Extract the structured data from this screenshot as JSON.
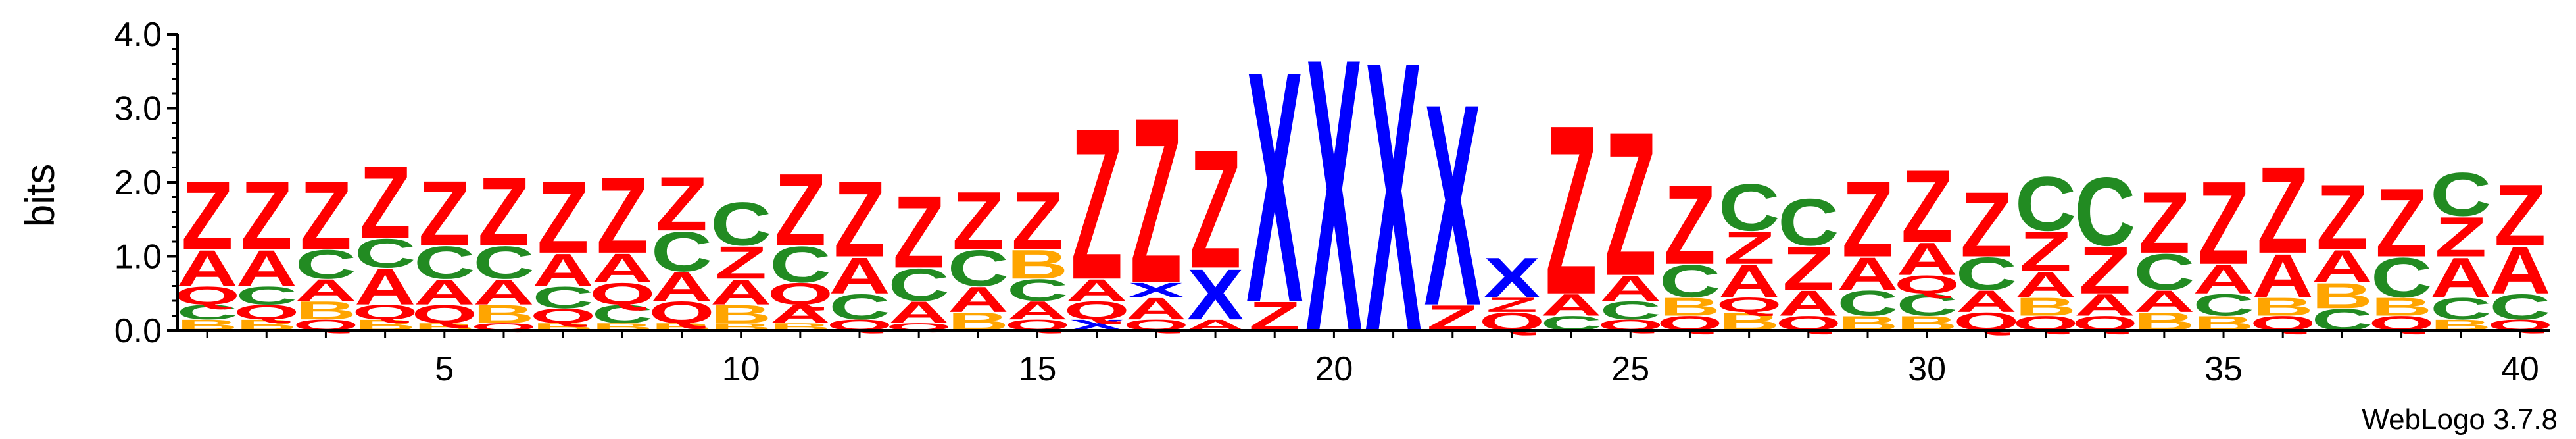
{
  "chart_data": {
    "type": "sequence-logo",
    "ylabel": "bits",
    "ylim": [
      0,
      4.0
    ],
    "y_ticks": [
      "0.0",
      "1.0",
      "2.0",
      "3.0",
      "4.0"
    ],
    "y_tick_values": [
      0,
      1,
      2,
      3,
      4
    ],
    "x_tick_positions": [
      5,
      10,
      15,
      20,
      25,
      30,
      35,
      40
    ],
    "x_tick_labels": [
      "5",
      "10",
      "15",
      "20",
      "25",
      "30",
      "35",
      "40"
    ],
    "colors": {
      "Z": "#ff0000",
      "A": "#ff0000",
      "C": "#228b22",
      "Q": "#ff0000",
      "B": "#ffa500",
      "X": "#0000ff"
    },
    "positions": [
      {
        "pos": 1,
        "stack": [
          [
            "B",
            0.15
          ],
          [
            "C",
            0.2
          ],
          [
            "Q",
            0.25
          ],
          [
            "A",
            0.5
          ],
          [
            "Z",
            0.95
          ]
        ]
      },
      {
        "pos": 2,
        "stack": [
          [
            "B",
            0.15
          ],
          [
            "Q",
            0.2
          ],
          [
            "C",
            0.25
          ],
          [
            "A",
            0.5
          ],
          [
            "Z",
            0.95
          ]
        ]
      },
      {
        "pos": 3,
        "stack": [
          [
            "Q",
            0.15
          ],
          [
            "B",
            0.25
          ],
          [
            "A",
            0.3
          ],
          [
            "C",
            0.4
          ],
          [
            "Z",
            0.95
          ]
        ]
      },
      {
        "pos": 4,
        "stack": [
          [
            "B",
            0.15
          ],
          [
            "Q",
            0.2
          ],
          [
            "A",
            0.5
          ],
          [
            "C",
            0.4
          ],
          [
            "Z",
            1.0
          ]
        ]
      },
      {
        "pos": 5,
        "stack": [
          [
            "B",
            0.1
          ],
          [
            "Q",
            0.25
          ],
          [
            "A",
            0.35
          ],
          [
            "C",
            0.45
          ],
          [
            "Z",
            0.9
          ]
        ]
      },
      {
        "pos": 6,
        "stack": [
          [
            "Q",
            0.1
          ],
          [
            "B",
            0.25
          ],
          [
            "A",
            0.35
          ],
          [
            "C",
            0.45
          ],
          [
            "Z",
            0.95
          ]
        ]
      },
      {
        "pos": 7,
        "stack": [
          [
            "B",
            0.1
          ],
          [
            "Q",
            0.2
          ],
          [
            "C",
            0.3
          ],
          [
            "A",
            0.45
          ],
          [
            "Z",
            1.0
          ]
        ]
      },
      {
        "pos": 8,
        "stack": [
          [
            "B",
            0.1
          ],
          [
            "C",
            0.25
          ],
          [
            "Q",
            0.3
          ],
          [
            "A",
            0.4
          ],
          [
            "Z",
            1.05
          ]
        ]
      },
      {
        "pos": 9,
        "stack": [
          [
            "B",
            0.1
          ],
          [
            "Q",
            0.3
          ],
          [
            "A",
            0.4
          ],
          [
            "C",
            0.55
          ],
          [
            "Z",
            0.75
          ]
        ]
      },
      {
        "pos": 10,
        "stack": [
          [
            "B",
            0.1
          ],
          [
            "B",
            0.25
          ],
          [
            "A",
            0.35
          ],
          [
            "Z",
            0.45
          ],
          [
            "C",
            0.6
          ]
        ]
      },
      {
        "pos": 11,
        "stack": [
          [
            "B",
            0.1
          ],
          [
            "A",
            0.25
          ],
          [
            "Q",
            0.3
          ],
          [
            "C",
            0.5
          ],
          [
            "Z",
            1.0
          ]
        ]
      },
      {
        "pos": 12,
        "stack": [
          [
            "Q",
            0.15
          ],
          [
            "C",
            0.35
          ],
          [
            "A",
            0.5
          ],
          [
            "Z",
            1.05
          ]
        ]
      },
      {
        "pos": 13,
        "stack": [
          [
            "Q",
            0.1
          ],
          [
            "A",
            0.3
          ],
          [
            "C",
            0.45
          ],
          [
            "Z",
            1.0
          ]
        ]
      },
      {
        "pos": 14,
        "stack": [
          [
            "B",
            0.25
          ],
          [
            "A",
            0.35
          ],
          [
            "C",
            0.5
          ],
          [
            "Z",
            0.8
          ]
        ]
      },
      {
        "pos": 15,
        "stack": [
          [
            "Q",
            0.15
          ],
          [
            "A",
            0.25
          ],
          [
            "C",
            0.3
          ],
          [
            "B",
            0.4
          ],
          [
            "Z",
            0.8
          ]
        ]
      },
      {
        "pos": 16,
        "stack": [
          [
            "X",
            0.15
          ],
          [
            "Q",
            0.25
          ],
          [
            "A",
            0.3
          ],
          [
            "Z",
            2.1
          ]
        ]
      },
      {
        "pos": 17,
        "stack": [
          [
            "Q",
            0.15
          ],
          [
            "A",
            0.3
          ],
          [
            "X",
            0.2
          ],
          [
            "Z",
            2.3
          ]
        ]
      },
      {
        "pos": 18,
        "stack": [
          [
            "A",
            0.15
          ],
          [
            "X",
            0.7
          ],
          [
            "Z",
            1.65
          ]
        ]
      },
      {
        "pos": 19,
        "stack": [
          [
            "Z",
            0.4
          ],
          [
            "X",
            3.2
          ]
        ]
      },
      {
        "pos": 20,
        "stack": [
          [
            "X",
            3.8
          ]
        ]
      },
      {
        "pos": 21,
        "stack": [
          [
            "X",
            3.75
          ]
        ]
      },
      {
        "pos": 22,
        "stack": [
          [
            "Z",
            0.35
          ],
          [
            "X",
            2.8
          ]
        ]
      },
      {
        "pos": 23,
        "stack": [
          [
            "Q",
            0.25
          ],
          [
            "Z",
            0.2
          ],
          [
            "X",
            0.55
          ],
          [
            "Z",
            0.0
          ]
        ]
      },
      {
        "pos": 24,
        "stack": [
          [
            "C",
            0.2
          ],
          [
            "A",
            0.3
          ],
          [
            "Z",
            2.35
          ]
        ]
      },
      {
        "pos": 25,
        "stack": [
          [
            "Q",
            0.15
          ],
          [
            "C",
            0.25
          ],
          [
            "A",
            0.35
          ],
          [
            "Z",
            2.0
          ]
        ]
      },
      {
        "pos": 26,
        "stack": [
          [
            "Q",
            0.2
          ],
          [
            "B",
            0.25
          ],
          [
            "C",
            0.45
          ],
          [
            "Z",
            1.1
          ]
        ]
      },
      {
        "pos": 27,
        "stack": [
          [
            "B",
            0.25
          ],
          [
            "Q",
            0.2
          ],
          [
            "A",
            0.45
          ],
          [
            "Z",
            0.45
          ],
          [
            "C",
            0.65
          ]
        ]
      },
      {
        "pos": 28,
        "stack": [
          [
            "Q",
            0.2
          ],
          [
            "A",
            0.35
          ],
          [
            "Z",
            0.6
          ],
          [
            "C",
            0.65
          ]
        ]
      },
      {
        "pos": 29,
        "stack": [
          [
            "B",
            0.2
          ],
          [
            "C",
            0.35
          ],
          [
            "A",
            0.45
          ],
          [
            "Z",
            1.05
          ]
        ]
      },
      {
        "pos": 30,
        "stack": [
          [
            "B",
            0.2
          ],
          [
            "C",
            0.3
          ],
          [
            "Q",
            0.25
          ],
          [
            "A",
            0.45
          ],
          [
            "Z",
            1.0
          ]
        ]
      },
      {
        "pos": 31,
        "stack": [
          [
            "Q",
            0.25
          ],
          [
            "A",
            0.3
          ],
          [
            "C",
            0.45
          ],
          [
            "Z",
            0.9
          ]
        ]
      },
      {
        "pos": 32,
        "stack": [
          [
            "Q",
            0.2
          ],
          [
            "B",
            0.25
          ],
          [
            "A",
            0.35
          ],
          [
            "Z",
            0.55
          ],
          [
            "C",
            0.75
          ]
        ]
      },
      {
        "pos": 33,
        "stack": [
          [
            "Q",
            0.2
          ],
          [
            "A",
            0.3
          ],
          [
            "Z",
            0.65
          ],
          [
            "C",
            0.95
          ]
        ]
      },
      {
        "pos": 34,
        "stack": [
          [
            "B",
            0.25
          ],
          [
            "A",
            0.3
          ],
          [
            "C",
            0.5
          ],
          [
            "Z",
            0.85
          ]
        ]
      },
      {
        "pos": 35,
        "stack": [
          [
            "B",
            0.2
          ],
          [
            "C",
            0.3
          ],
          [
            "A",
            0.4
          ],
          [
            "Z",
            1.15
          ]
        ]
      },
      {
        "pos": 36,
        "stack": [
          [
            "Q",
            0.2
          ],
          [
            "B",
            0.25
          ],
          [
            "A",
            0.6
          ],
          [
            "Z",
            1.2
          ]
        ]
      },
      {
        "pos": 37,
        "stack": [
          [
            "C",
            0.3
          ],
          [
            "B",
            0.35
          ],
          [
            "A",
            0.45
          ],
          [
            "Z",
            0.9
          ]
        ]
      },
      {
        "pos": 38,
        "stack": [
          [
            "Q",
            0.2
          ],
          [
            "B",
            0.25
          ],
          [
            "C",
            0.55
          ],
          [
            "Z",
            0.95
          ]
        ]
      },
      {
        "pos": 39,
        "stack": [
          [
            "B",
            0.15
          ],
          [
            "C",
            0.3
          ],
          [
            "A",
            0.55
          ],
          [
            "Z",
            0.55
          ],
          [
            "C",
            0.6
          ]
        ]
      },
      {
        "pos": 40,
        "stack": [
          [
            "Q",
            0.15
          ],
          [
            "C",
            0.35
          ],
          [
            "A",
            0.65
          ],
          [
            "Z",
            0.85
          ]
        ]
      }
    ]
  },
  "credit": "WebLogo 3.7.8"
}
